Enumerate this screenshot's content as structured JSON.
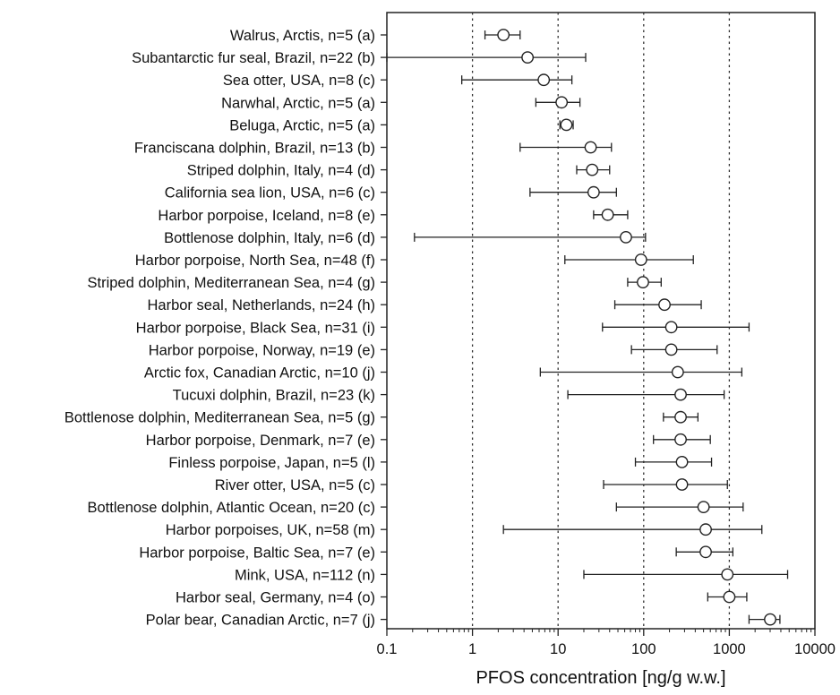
{
  "chart_data": {
    "type": "dot-with-error-bars",
    "orientation": "horizontal",
    "title": "",
    "xlabel": "PFOS concentration [ng/g w.w.]",
    "ylabel": "",
    "xscale": "log",
    "xlim": [
      0.1,
      10000
    ],
    "xticks": [
      0.1,
      1,
      10,
      100,
      1000,
      10000
    ],
    "xtick_labels": [
      "0.1",
      "1",
      "10",
      "100",
      "1000",
      "10000"
    ],
    "reference_lines": [
      1,
      10,
      100,
      1000
    ],
    "grid": "dotted vertical lines at 1, 10, 100, 1000",
    "categories": [
      "Walrus, Arctis, n=5 (a)",
      "Subantarctic fur seal, Brazil, n=22 (b)",
      "Sea otter, USA, n=8 (c)",
      "Narwhal, Arctic, n=5 (a)",
      "Beluga, Arctic, n=5 (a)",
      "Franciscana dolphin, Brazil, n=13 (b)",
      "Striped dolphin, Italy, n=4 (d)",
      "California sea lion, USA, n=6 (c)",
      "Harbor porpoise, Iceland, n=8 (e)",
      "Bottlenose dolphin, Italy, n=6 (d)",
      "Harbor porpoise, North Sea, n=48 (f)",
      "Striped dolphin, Mediterranean Sea, n=4 (g)",
      "Harbor seal, Netherlands, n=24 (h)",
      "Harbor porpoise, Black Sea, n=31 (i)",
      "Harbor porpoise, Norway, n=19 (e)",
      "Arctic fox, Canadian Arctic, n=10 (j)",
      "Tucuxi dolphin, Brazil, n=23 (k)",
      "Bottlenose dolphin, Mediterranean Sea, n=5 (g)",
      "Harbor porpoise, Denmark, n=7 (e)",
      "Finless porpoise, Japan, n=5 (l)",
      "River otter, USA, n=5 (c)",
      "Bottlenose dolphin, Atlantic Ocean, n=20 (c)",
      "Harbor porpoises, UK, n=58 (m)",
      "Harbor porpoise, Baltic Sea, n=7 (e)",
      "Mink, USA, n=112 (n)",
      "Harbor seal, Germany, n=4 (o)",
      "Polar bear, Canadian Arctic, n=7 (j)"
    ],
    "center": [
      2.3,
      4.4,
      6.8,
      11,
      12.5,
      24,
      25,
      26,
      38,
      62,
      93,
      98,
      175,
      210,
      210,
      250,
      270,
      270,
      270,
      280,
      280,
      500,
      530,
      530,
      950,
      1000,
      3000
    ],
    "min": [
      1.4,
      0.1,
      0.75,
      5.5,
      10.5,
      3.6,
      16.5,
      4.7,
      26,
      0.21,
      12,
      65,
      46,
      33,
      72,
      6.2,
      13,
      170,
      130,
      80,
      34,
      48,
      2.3,
      240,
      20,
      560,
      1700
    ],
    "max": [
      3.6,
      21,
      14.5,
      18,
      15,
      42,
      40,
      48,
      65,
      105,
      380,
      160,
      470,
      1700,
      720,
      1400,
      870,
      430,
      600,
      620,
      950,
      1450,
      2400,
      1100,
      4800,
      1600,
      3900
    ]
  }
}
